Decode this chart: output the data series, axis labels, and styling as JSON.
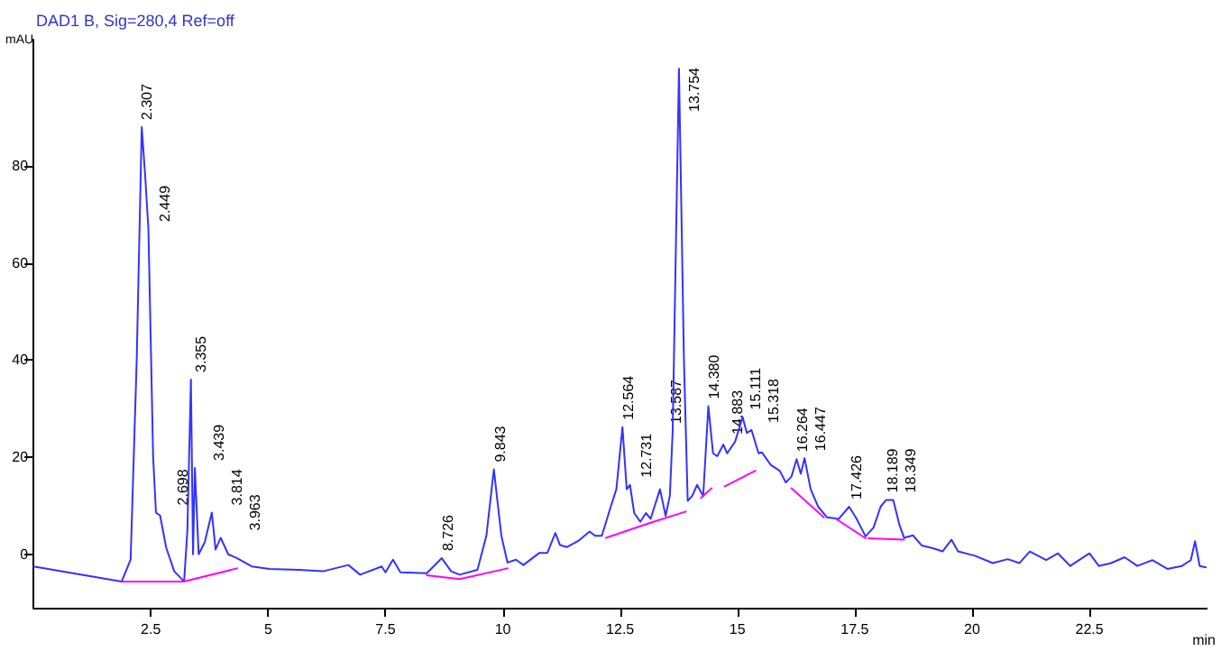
{
  "chart_data": {
    "type": "line",
    "title": "DAD1 B, Sig=280,4 Ref=off",
    "xlabel": "min",
    "ylabel": "mAU",
    "xlim": [
      0,
      25
    ],
    "ylim": [
      -11,
      106
    ],
    "xticks": [
      2.5,
      5,
      7.5,
      10,
      12.5,
      15,
      17.5,
      20,
      22.5
    ],
    "yticks": [
      0,
      20,
      40,
      60,
      80
    ],
    "marker": "none",
    "line_style": "solid",
    "series": [
      {
        "color": "#3333ff",
        "x": [
          0,
          1.88,
          2.07,
          2.2,
          2.307,
          2.38,
          2.449,
          2.55,
          2.61,
          2.698,
          2.83,
          3.0,
          3.21,
          3.28,
          3.355,
          3.4,
          3.439,
          3.52,
          3.65,
          3.8,
          3.88,
          3.99,
          4.15,
          4.34,
          4.65,
          5.03,
          5.66,
          6.17,
          6.71,
          6.96,
          7.42,
          7.5,
          7.66,
          7.82,
          8.38,
          8.7,
          8.9,
          9.08,
          9.46,
          9.65,
          9.81,
          9.97,
          10.1,
          10.28,
          10.44,
          10.78,
          10.95,
          11.12,
          11.22,
          11.37,
          11.6,
          11.85,
          11.97,
          12.11,
          12.3,
          12.42,
          12.55,
          12.64,
          12.71,
          12.8,
          12.93,
          13.05,
          13.15,
          13.35,
          13.47,
          13.56,
          13.62,
          13.754,
          13.86,
          13.94,
          14.04,
          14.14,
          14.27,
          14.38,
          14.48,
          14.57,
          14.7,
          14.78,
          14.95,
          15.11,
          15.2,
          15.3,
          15.45,
          15.52,
          15.71,
          15.9,
          16.03,
          16.15,
          16.26,
          16.35,
          16.43,
          16.56,
          16.72,
          16.91,
          17.16,
          17.38,
          17.54,
          17.73,
          17.9,
          18.05,
          18.17,
          18.32,
          18.45,
          18.55,
          18.74,
          18.93,
          19.18,
          19.37,
          19.56,
          19.7,
          20.06,
          20.44,
          20.76,
          21.01,
          21.23,
          21.58,
          21.83,
          22.09,
          22.5,
          22.7,
          22.96,
          23.25,
          23.52,
          23.84,
          24.16,
          24.47,
          24.66,
          24.75,
          24.85,
          24.98
        ],
        "values": [
          -2.5,
          -5.6,
          -1.1,
          40,
          88,
          78,
          67,
          20,
          8.6,
          8,
          1.3,
          -3.5,
          -5.6,
          5,
          36,
          0,
          17.8,
          0,
          2.5,
          8.6,
          1,
          3.4,
          0,
          -0.8,
          -2.5,
          -3,
          -3.2,
          -3.5,
          -2.2,
          -4.2,
          -2.5,
          -3.7,
          -1.1,
          -3.7,
          -3.9,
          -0.8,
          -3.5,
          -4.2,
          -3.2,
          3.8,
          17.5,
          3.8,
          -1.7,
          -1.1,
          -2.2,
          0.3,
          0.3,
          4.4,
          1.9,
          1.5,
          2.7,
          4.7,
          3.8,
          3.8,
          9.8,
          13.4,
          26.2,
          13.4,
          14.3,
          8.5,
          6.7,
          8.5,
          7.3,
          13.4,
          7.9,
          12.1,
          25.4,
          100,
          40,
          11,
          12.1,
          14.3,
          12,
          30.5,
          20.8,
          20.2,
          22.6,
          20.8,
          23.2,
          28.3,
          25,
          25.6,
          20.8,
          21,
          18.4,
          17.2,
          14.8,
          16,
          19.6,
          16.6,
          19.8,
          13.4,
          9.8,
          7.6,
          7.3,
          9.8,
          7.3,
          3.7,
          5.5,
          9.8,
          11.2,
          11.2,
          6.1,
          3.4,
          3.9,
          1.8,
          1.2,
          0.6,
          3,
          0.6,
          -0.3,
          -1.8,
          -1,
          -1.8,
          0.6,
          -1.2,
          0.2,
          -2.4,
          0.2,
          -2.4,
          -1.8,
          -0.6,
          -2.4,
          -1.2,
          -3,
          -2.4,
          -1.2,
          2.7,
          -2.4,
          -2.7
        ]
      },
      {
        "color": "#ff00ff",
        "x": [
          1.9,
          3.2,
          4.34,
          4.5,
          8.38,
          9.08,
          10.1,
          11,
          12.2,
          13.12,
          13.9,
          14.0,
          14.22,
          14.45,
          14.6,
          14.73,
          15.38,
          15.8,
          16.15,
          16.84,
          17.0,
          17.1,
          17.73,
          17.76,
          17.79,
          18.55
        ],
        "values": [
          -5.6,
          -5.6,
          -2.9,
          null,
          -4.3,
          -5.1,
          -2.9,
          null,
          3.4,
          6.4,
          8.8,
          null,
          11.6,
          13.6,
          null,
          14,
          17.2,
          null,
          13.6,
          7.6,
          null,
          7.3,
          3.3,
          null,
          3.3,
          3
        ]
      }
    ],
    "annotations": [
      {
        "text": "2.307",
        "x": 2.307,
        "y": 88
      },
      {
        "text": "2.449",
        "x": 2.449,
        "y": 67
      },
      {
        "text": "2.698",
        "x": 2.698,
        "y": 8.6
      },
      {
        "text": "3.355",
        "x": 3.355,
        "y": 36
      },
      {
        "text": "3.439",
        "x": 3.439,
        "y": 17.8
      },
      {
        "text": "3.814",
        "x": 3.814,
        "y": 8.6
      },
      {
        "text": "3.963",
        "x": 3.963,
        "y": 3.4
      },
      {
        "text": "8.726",
        "x": 8.726,
        "y": -0.8
      },
      {
        "text": "9.843",
        "x": 9.843,
        "y": 17.5
      },
      {
        "text": "12.564",
        "x": 12.564,
        "y": 26.2
      },
      {
        "text": "12.731",
        "x": 12.731,
        "y": 14.3
      },
      {
        "text": "13.587",
        "x": 13.587,
        "y": 25.4
      },
      {
        "text": "13.754",
        "x": 13.754,
        "y": 100
      },
      {
        "text": "14.380",
        "x": 14.38,
        "y": 30.5
      },
      {
        "text": "14.883",
        "x": 14.883,
        "y": 23.2
      },
      {
        "text": "15.111",
        "x": 15.111,
        "y": 28.3
      },
      {
        "text": "15.318",
        "x": 15.318,
        "y": 25.6
      },
      {
        "text": "16.264",
        "x": 16.264,
        "y": 19.6
      },
      {
        "text": "16.447",
        "x": 16.447,
        "y": 19.8
      },
      {
        "text": "17.426",
        "x": 17.426,
        "y": 9.8
      },
      {
        "text": "18.189",
        "x": 18.189,
        "y": 11.2
      },
      {
        "text": "18.349",
        "x": 18.349,
        "y": 11.2
      }
    ]
  }
}
